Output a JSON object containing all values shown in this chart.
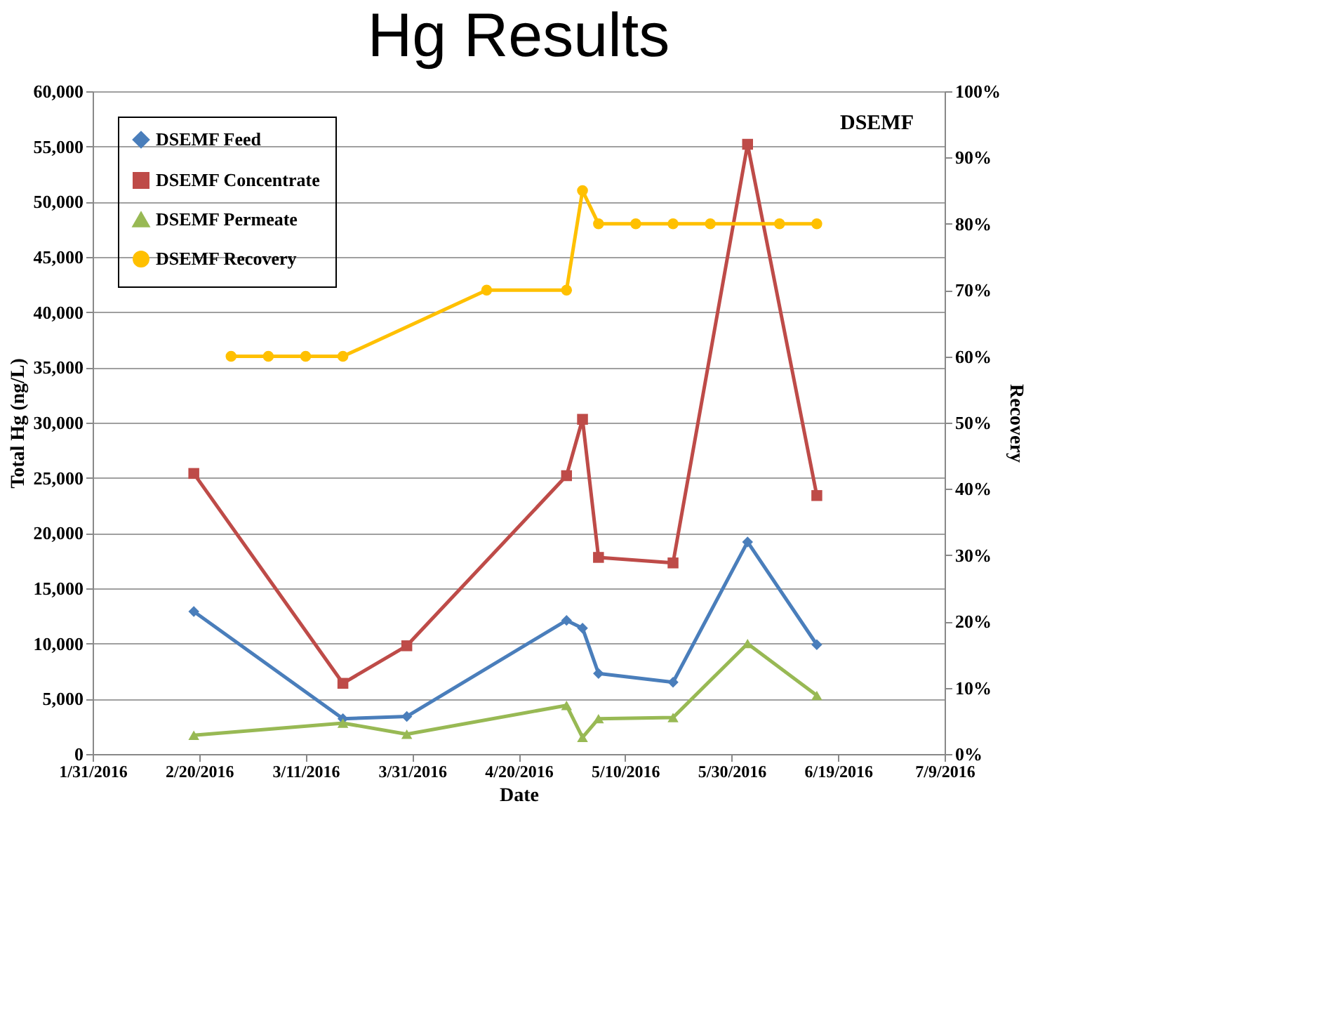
{
  "chart_data": {
    "type": "line",
    "title": "Hg Results",
    "xlabel": "Date",
    "ylabel": "Total Hg (ng/L)",
    "y2label": "Recovery",
    "annotations": [
      "DSEMF"
    ],
    "series": [
      {
        "name": "DSEMF Feed",
        "color": "#4a7ebb",
        "marker": "diamond",
        "x": [
          "2016-02-19",
          "2016-03-18",
          "2016-03-30",
          "2016-04-29",
          "2016-05-02",
          "2016-05-05",
          "2016-05-19",
          "2016-06-02",
          "2016-06-15"
        ],
        "values": [
          12900,
          3200,
          3400,
          12100,
          11400,
          7300,
          6500,
          19200,
          9900
        ]
      },
      {
        "name": "DSEMF Concentrate",
        "color": "#be4b48",
        "marker": "square",
        "x": [
          "2016-02-19",
          "2016-03-18",
          "2016-03-30",
          "2016-04-29",
          "2016-05-02",
          "2016-05-05",
          "2016-05-19",
          "2016-06-02",
          "2016-06-15"
        ],
        "values": [
          25400,
          6400,
          9800,
          25200,
          30300,
          17800,
          17300,
          55200,
          23400
        ]
      },
      {
        "name": "DSEMF Permeate",
        "color": "#98b954",
        "marker": "triangle",
        "x": [
          "2016-02-19",
          "2016-03-18",
          "2016-03-30",
          "2016-04-29",
          "2016-05-02",
          "2016-05-05",
          "2016-05-19",
          "2016-06-02",
          "2016-06-15"
        ],
        "values": [
          1700,
          2800,
          1800,
          4400,
          1500,
          3200,
          3300,
          10000,
          5300
        ]
      },
      {
        "name": "DSEMF Recovery",
        "color": "#ffc000",
        "marker": "circle",
        "axis": "y2",
        "x": [
          "2016-02-26",
          "2016-03-04",
          "2016-03-11",
          "2016-03-18",
          "2016-04-14",
          "2016-04-29",
          "2016-05-02",
          "2016-05-05",
          "2016-05-12",
          "2016-05-19",
          "2016-05-26",
          "2016-06-08",
          "2016-06-15"
        ],
        "values": [
          60,
          60,
          60,
          60,
          70,
          70,
          85,
          80,
          80,
          80,
          80,
          80,
          80
        ]
      }
    ],
    "xlim": [
      "2016-01-31",
      "2016-07-09"
    ],
    "xticks": [
      {
        "value": "2016-01-31",
        "label": "1/31/2016"
      },
      {
        "value": "2016-02-20",
        "label": "2/20/2016"
      },
      {
        "value": "2016-03-11",
        "label": "3/11/2016"
      },
      {
        "value": "2016-03-31",
        "label": "3/31/2016"
      },
      {
        "value": "2016-04-20",
        "label": "4/20/2016"
      },
      {
        "value": "2016-05-10",
        "label": "5/10/2016"
      },
      {
        "value": "2016-05-30",
        "label": "5/30/2016"
      },
      {
        "value": "2016-06-19",
        "label": "6/19/2016"
      },
      {
        "value": "2016-07-09",
        "label": "7/9/2016"
      }
    ],
    "ylim": [
      0,
      60000
    ],
    "yticks": [
      {
        "value": 0,
        "label": "0"
      },
      {
        "value": 5000,
        "label": "5,000"
      },
      {
        "value": 10000,
        "label": "10,000"
      },
      {
        "value": 15000,
        "label": "15,000"
      },
      {
        "value": 20000,
        "label": "20,000"
      },
      {
        "value": 25000,
        "label": "25,000"
      },
      {
        "value": 30000,
        "label": "30,000"
      },
      {
        "value": 35000,
        "label": "35,000"
      },
      {
        "value": 40000,
        "label": "40,000"
      },
      {
        "value": 45000,
        "label": "45,000"
      },
      {
        "value": 50000,
        "label": "50,000"
      },
      {
        "value": 55000,
        "label": "55,000"
      },
      {
        "value": 60000,
        "label": "60,000"
      }
    ],
    "y2lim": [
      0,
      100
    ],
    "y2ticks": [
      {
        "value": 0,
        "label": "0%"
      },
      {
        "value": 10,
        "label": "10%"
      },
      {
        "value": 20,
        "label": "20%"
      },
      {
        "value": 30,
        "label": "30%"
      },
      {
        "value": 40,
        "label": "40%"
      },
      {
        "value": 50,
        "label": "50%"
      },
      {
        "value": 60,
        "label": "60%"
      },
      {
        "value": 70,
        "label": "70%"
      },
      {
        "value": 80,
        "label": "80%"
      },
      {
        "value": 90,
        "label": "90%"
      },
      {
        "value": 100,
        "label": "100%"
      }
    ],
    "grid": "y",
    "legend": "top left",
    "line_style": "solid"
  }
}
